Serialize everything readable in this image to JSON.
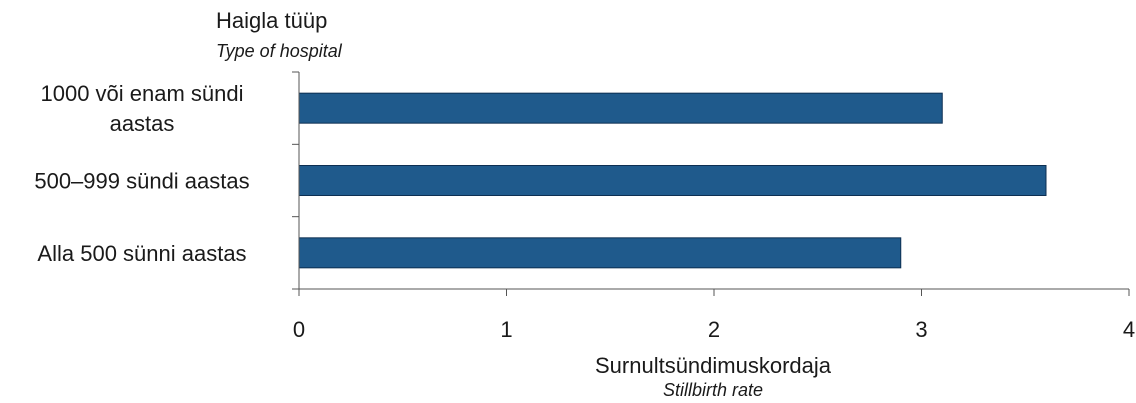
{
  "chart_data": {
    "type": "bar",
    "orientation": "horizontal",
    "categories": [
      "1000  või  enam sündi aastas",
      "500–999 sündi aastas",
      "Alla 500 sünni aastas"
    ],
    "category_lines": [
      [
        "1000  või  enam sündi",
        "aastas"
      ],
      [
        "500–999 sündi aastas"
      ],
      [
        "Alla 500 sünni aastas"
      ]
    ],
    "values": [
      3.1,
      3.6,
      2.9
    ],
    "xlim": [
      0,
      4
    ],
    "x_ticks": [
      "0",
      "1",
      "2",
      "3",
      "4"
    ],
    "ylabel": "Haigla tüüp",
    "ylabel_en": "Type of hospital",
    "xlabel": "Surnultsündimuskordaja",
    "xlabel_en": "Stillbirth rate",
    "bar_color": "#1f5a8c",
    "bar_edge_color": "#0d2f52",
    "grid": false,
    "legend": "none"
  }
}
